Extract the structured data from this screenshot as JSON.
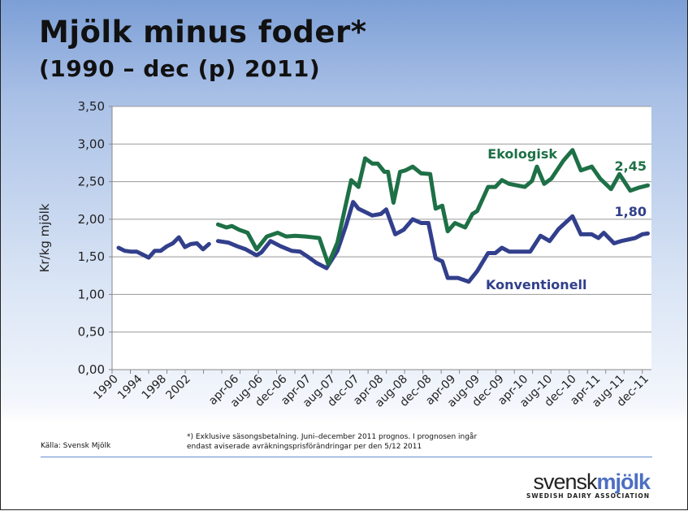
{
  "title": "Mjölk minus foder*",
  "subtitle": "(1990 – dec (p) 2011)",
  "source": "Källa: Svensk Mjölk",
  "note_line1": "*) Exklusive säsongsbetalning. Juni–december 2011 prognos. I prognosen ingår",
  "note_line2": "endast aviserade avräkningsprisförändringar per den 5/12 2011",
  "logo": {
    "part1": "svensk",
    "part2": "mjölk",
    "tagline": "SWEDISH DAIRY ASSOCIATION"
  },
  "chart_data": {
    "type": "line",
    "title": "Mjölk minus foder*",
    "ylabel": "Kr/kg mjölk",
    "xlabel": "",
    "ylim": [
      0,
      3.5
    ],
    "yticks": [
      "0,00",
      "0,50",
      "1,00",
      "1,50",
      "2,00",
      "2,50",
      "3,00",
      "3,50"
    ],
    "grid": true,
    "x_index_range": [
      0,
      88
    ],
    "x_tick_labels": [
      {
        "i": 0,
        "label": "1990"
      },
      {
        "i": 4,
        "label": "1994"
      },
      {
        "i": 8,
        "label": "1998"
      },
      {
        "i": 12,
        "label": "2002"
      },
      {
        "i": 20,
        "label": "apr-06"
      },
      {
        "i": 24,
        "label": "aug-06"
      },
      {
        "i": 28,
        "label": "dec-06"
      },
      {
        "i": 32,
        "label": "apr-07"
      },
      {
        "i": 36,
        "label": "aug-07"
      },
      {
        "i": 40,
        "label": "dec-07"
      },
      {
        "i": 44,
        "label": "apr-08"
      },
      {
        "i": 48,
        "label": "aug-08"
      },
      {
        "i": 52,
        "label": "dec-08"
      },
      {
        "i": 56,
        "label": "apr-09"
      },
      {
        "i": 60,
        "label": "aug-09"
      },
      {
        "i": 64,
        "label": "dec-09"
      },
      {
        "i": 68,
        "label": "apr-10"
      },
      {
        "i": 72,
        "label": "aug-10"
      },
      {
        "i": 76,
        "label": "dec-10"
      },
      {
        "i": 80,
        "label": "apr-11"
      },
      {
        "i": 84,
        "label": "aug-11"
      },
      {
        "i": 88,
        "label": "dec-11"
      }
    ],
    "series": [
      {
        "name": "Konventionell",
        "color": "#323f8c",
        "end_label": "1,80",
        "segments": [
          [
            [
              0,
              1.62
            ],
            [
              1,
              1.58
            ],
            [
              2,
              1.57
            ],
            [
              3,
              1.57
            ],
            [
              4,
              1.53
            ],
            [
              5,
              1.49
            ],
            [
              6,
              1.58
            ],
            [
              7,
              1.58
            ],
            [
              8,
              1.64
            ],
            [
              9,
              1.68
            ],
            [
              10,
              1.76
            ],
            [
              11,
              1.63
            ],
            [
              12,
              1.67
            ],
            [
              13,
              1.68
            ],
            [
              14,
              1.6
            ],
            [
              15,
              1.67
            ]
          ],
          [
            [
              16.5,
              1.71
            ],
            [
              18.2,
              1.69
            ],
            [
              19.7,
              1.64
            ],
            [
              21.1,
              1.6
            ],
            [
              22.9,
              1.52
            ],
            [
              23.7,
              1.56
            ],
            [
              25.2,
              1.71
            ],
            [
              26.9,
              1.64
            ],
            [
              28.7,
              1.58
            ],
            [
              30.1,
              1.57
            ],
            [
              31.6,
              1.49
            ],
            [
              32.8,
              1.42
            ],
            [
              34.5,
              1.35
            ],
            [
              36.3,
              1.58
            ],
            [
              37.7,
              1.91
            ],
            [
              38.9,
              2.23
            ],
            [
              39.8,
              2.14
            ],
            [
              42.1,
              2.05
            ],
            [
              43.5,
              2.07
            ],
            [
              44.4,
              2.13
            ],
            [
              45.9,
              1.8
            ],
            [
              47.3,
              1.86
            ],
            [
              48.8,
              2.0
            ],
            [
              50.2,
              1.95
            ],
            [
              51.4,
              1.95
            ],
            [
              52.6,
              1.48
            ],
            [
              53.7,
              1.44
            ],
            [
              54.6,
              1.22
            ],
            [
              56.3,
              1.22
            ],
            [
              58.1,
              1.17
            ],
            [
              59.5,
              1.31
            ],
            [
              61.3,
              1.55
            ],
            [
              62.5,
              1.55
            ],
            [
              63.6,
              1.62
            ],
            [
              64.8,
              1.57
            ],
            [
              68.3,
              1.57
            ],
            [
              70.0,
              1.78
            ],
            [
              71.5,
              1.71
            ],
            [
              73.0,
              1.87
            ],
            [
              75.3,
              2.04
            ],
            [
              76.7,
              1.8
            ],
            [
              78.5,
              1.8
            ],
            [
              79.6,
              1.75
            ],
            [
              80.5,
              1.82
            ],
            [
              82.2,
              1.68
            ],
            [
              83.4,
              1.71
            ],
            [
              85.7,
              1.75
            ],
            [
              86.9,
              1.8
            ],
            [
              87.8,
              1.81
            ]
          ]
        ]
      },
      {
        "name": "Ekologisk",
        "color": "#1e7046",
        "end_label": "2,45",
        "segments": [
          [
            [
              16.5,
              1.93
            ],
            [
              17.9,
              1.89
            ],
            [
              18.8,
              1.91
            ],
            [
              20.0,
              1.86
            ],
            [
              21.4,
              1.82
            ],
            [
              22.9,
              1.6
            ],
            [
              24.6,
              1.77
            ],
            [
              26.4,
              1.82
            ],
            [
              27.8,
              1.77
            ],
            [
              29.3,
              1.78
            ],
            [
              31.0,
              1.77
            ],
            [
              33.3,
              1.75
            ],
            [
              34.8,
              1.4
            ],
            [
              36.3,
              1.69
            ],
            [
              38.6,
              2.52
            ],
            [
              39.8,
              2.43
            ],
            [
              40.9,
              2.81
            ],
            [
              42.1,
              2.74
            ],
            [
              43.0,
              2.74
            ],
            [
              44.1,
              2.63
            ],
            [
              44.7,
              2.63
            ],
            [
              45.6,
              2.22
            ],
            [
              46.7,
              2.63
            ],
            [
              47.6,
              2.65
            ],
            [
              48.8,
              2.7
            ],
            [
              50.2,
              2.61
            ],
            [
              51.7,
              2.6
            ],
            [
              52.6,
              2.14
            ],
            [
              53.7,
              2.18
            ],
            [
              54.6,
              1.84
            ],
            [
              55.8,
              1.95
            ],
            [
              57.5,
              1.89
            ],
            [
              58.7,
              2.07
            ],
            [
              59.5,
              2.11
            ],
            [
              61.3,
              2.43
            ],
            [
              62.5,
              2.43
            ],
            [
              63.6,
              2.52
            ],
            [
              64.8,
              2.47
            ],
            [
              67.4,
              2.43
            ],
            [
              68.6,
              2.51
            ],
            [
              69.4,
              2.7
            ],
            [
              70.6,
              2.47
            ],
            [
              71.8,
              2.54
            ],
            [
              73.8,
              2.78
            ],
            [
              75.3,
              2.92
            ],
            [
              76.7,
              2.65
            ],
            [
              78.5,
              2.7
            ],
            [
              79.9,
              2.54
            ],
            [
              81.7,
              2.4
            ],
            [
              83.1,
              2.6
            ],
            [
              84.9,
              2.38
            ],
            [
              86.3,
              2.42
            ],
            [
              87.8,
              2.45
            ]
          ]
        ]
      }
    ]
  }
}
